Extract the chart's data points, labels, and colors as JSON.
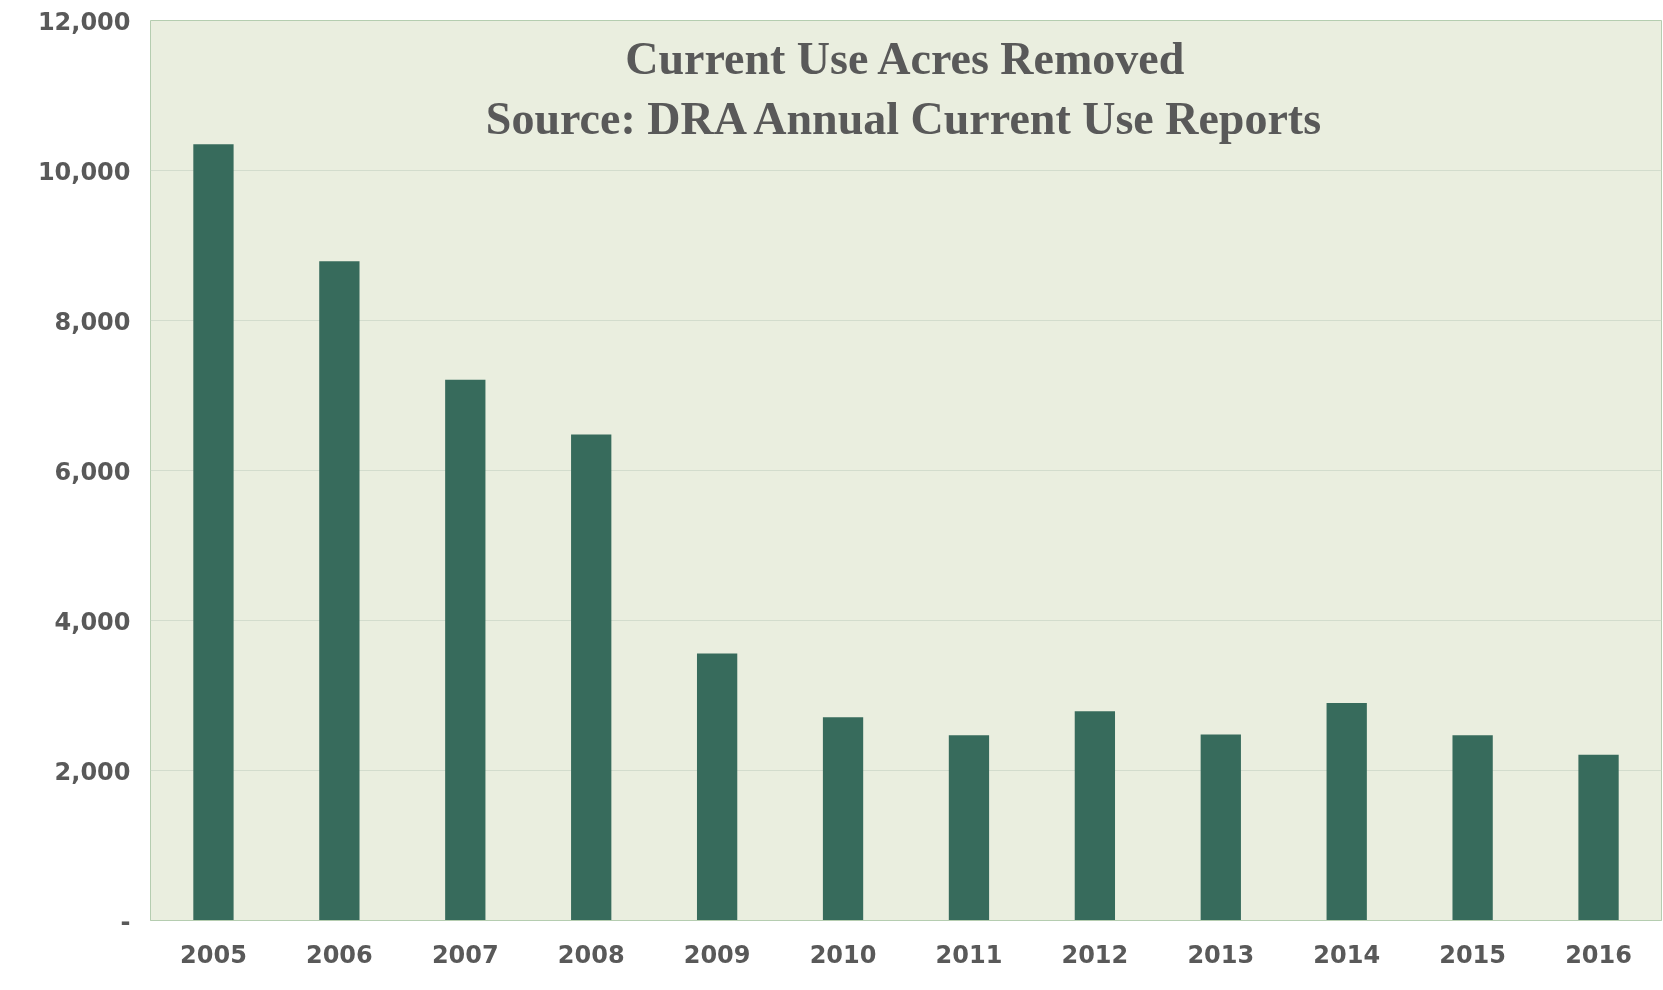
{
  "chart_data": {
    "type": "bar",
    "title": "Current Use Acres Removed",
    "subtitle": "Source: DRA Annual Current Use Reports",
    "categories": [
      "2005",
      "2006",
      "2007",
      "2008",
      "2009",
      "2010",
      "2011",
      "2012",
      "2013",
      "2014",
      "2015",
      "2016"
    ],
    "values": [
      10350,
      8790,
      7210,
      6480,
      3560,
      2710,
      2470,
      2790,
      2480,
      2900,
      2470,
      2210
    ],
    "color": "#376b5c",
    "ylim": [
      0,
      12000
    ],
    "yticks": [
      {
        "value": 0,
        "label": "-"
      },
      {
        "value": 2000,
        "label": "2,000"
      },
      {
        "value": 4000,
        "label": "4,000"
      },
      {
        "value": 6000,
        "label": "6,000"
      },
      {
        "value": 8000,
        "label": "8,000"
      },
      {
        "value": 10000,
        "label": "10,000"
      },
      {
        "value": 12000,
        "label": "12,000"
      }
    ],
    "grid": "y"
  }
}
